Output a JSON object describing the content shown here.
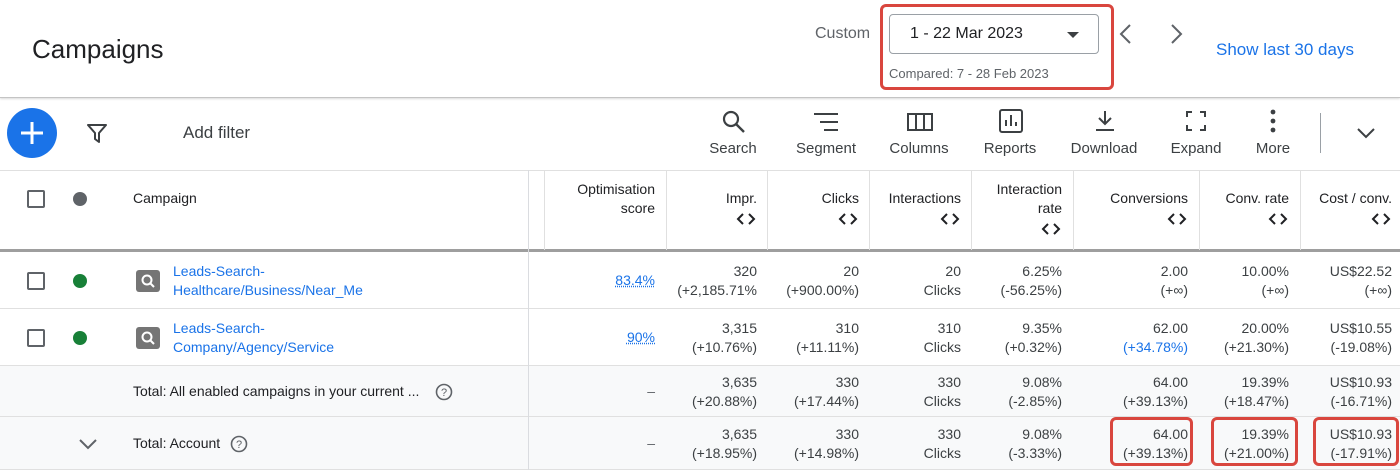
{
  "header": {
    "title": "Campaigns",
    "date_label": "Custom",
    "date_range": "1 - 22 Mar 2023",
    "compared": "Compared: 7 - 28 Feb 2023",
    "show_last": "Show last 30 days"
  },
  "toolbar": {
    "add_filter": "Add filter",
    "tools": [
      "Search",
      "Segment",
      "Columns",
      "Reports",
      "Download",
      "Expand",
      "More"
    ]
  },
  "table": {
    "columns": [
      "Campaign",
      "Optimisation score",
      "Impr.",
      "Clicks",
      "Interactions",
      "Interaction rate",
      "Conversions",
      "Conv. rate",
      "Cost / conv."
    ],
    "rows": [
      {
        "campaign": [
          "Leads-Search-",
          "Healthcare/Business/Near_Me"
        ],
        "score": "83.4%",
        "cells": [
          [
            "320",
            "(+2,185.71%"
          ],
          [
            "20",
            "(+900.00%)"
          ],
          [
            "20",
            "Clicks"
          ],
          [
            "6.25%",
            "(-56.25%)"
          ],
          [
            "2.00",
            "(+∞)"
          ],
          [
            "10.00%",
            "(+∞)"
          ],
          [
            "US$22.52",
            "(+∞)"
          ]
        ]
      },
      {
        "campaign": [
          "Leads-Search-",
          "Company/Agency/Service"
        ],
        "score": "90%",
        "cells": [
          [
            "3,315",
            "(+10.76%)"
          ],
          [
            "310",
            "(+11.11%)"
          ],
          [
            "310",
            "Clicks"
          ],
          [
            "9.35%",
            "(+0.32%)"
          ],
          [
            "62.00",
            "(+34.78%)"
          ],
          [
            "20.00%",
            "(+21.30%)"
          ],
          [
            "US$10.55",
            "(-19.08%)"
          ]
        ]
      }
    ],
    "totals": [
      {
        "label": "Total: All enabled campaigns in your current ...",
        "score": "–",
        "cells": [
          [
            "3,635",
            "(+20.88%)"
          ],
          [
            "330",
            "(+17.44%)"
          ],
          [
            "330",
            "Clicks"
          ],
          [
            "9.08%",
            "(-2.85%)"
          ],
          [
            "64.00",
            "(+39.13%)"
          ],
          [
            "19.39%",
            "(+18.47%)"
          ],
          [
            "US$10.93",
            "(-16.71%)"
          ]
        ]
      },
      {
        "label": "Total: Account",
        "score": "–",
        "cells": [
          [
            "3,635",
            "(+18.95%)"
          ],
          [
            "330",
            "(+14.98%)"
          ],
          [
            "330",
            "Clicks"
          ],
          [
            "9.08%",
            "(-3.33%)"
          ],
          [
            "64.00",
            "(+39.13%)"
          ],
          [
            "19.39%",
            "(+21.00%)"
          ],
          [
            "US$10.93",
            "(-17.91%)"
          ]
        ]
      }
    ]
  }
}
